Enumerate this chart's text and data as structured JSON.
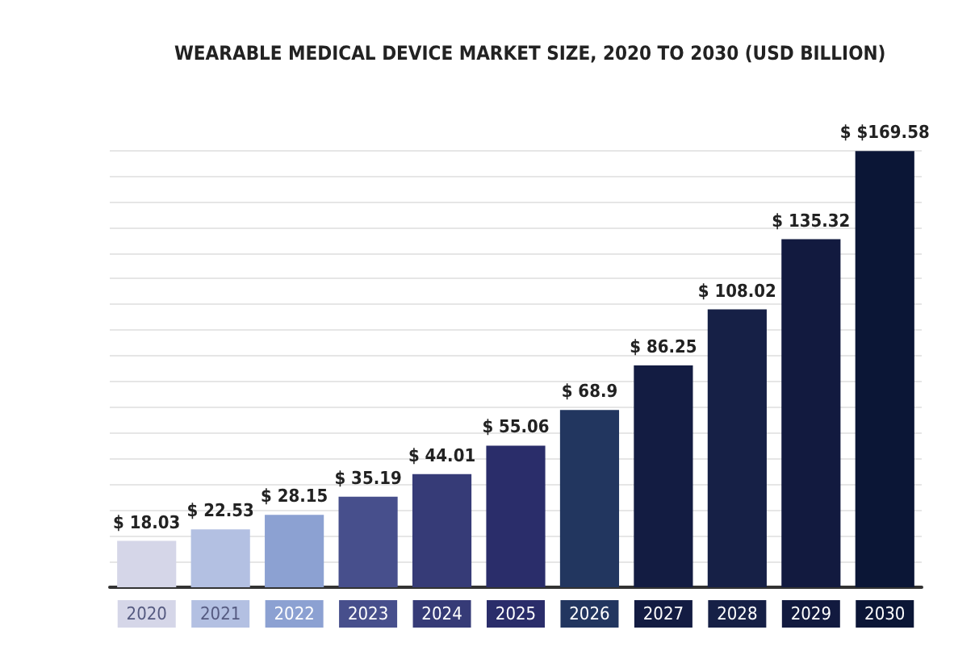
{
  "chart_data": {
    "type": "bar",
    "title": "WEARABLE MEDICAL DEVICE MARKET SIZE, 2020 TO 2030 (USD BILLION)",
    "categories": [
      "2020",
      "2021",
      "2022",
      "2023",
      "2024",
      "2025",
      "2026",
      "2027",
      "2028",
      "2029",
      "2030"
    ],
    "values": [
      18.03,
      22.53,
      28.15,
      35.19,
      44.01,
      55.06,
      68.9,
      86.25,
      108.02,
      135.32,
      169.58
    ],
    "value_labels": [
      "$ 18.03",
      "$ 22.53",
      "$ 28.15",
      "$ 35.19",
      "$ 44.01",
      "$ 55.06",
      "$ 68.9",
      "$ 86.25",
      "$ 108.02",
      "$ 135.32",
      "$ $169.58"
    ],
    "colors": [
      "#d5d6e8",
      "#b3c0e2",
      "#8ca1d2",
      "#474f8c",
      "#363b77",
      "#2a2d6a",
      "#22365f",
      "#131c42",
      "#162046",
      "#121a3f",
      "#0b1636"
    ],
    "grid": "y",
    "tick_labels": "x"
  }
}
